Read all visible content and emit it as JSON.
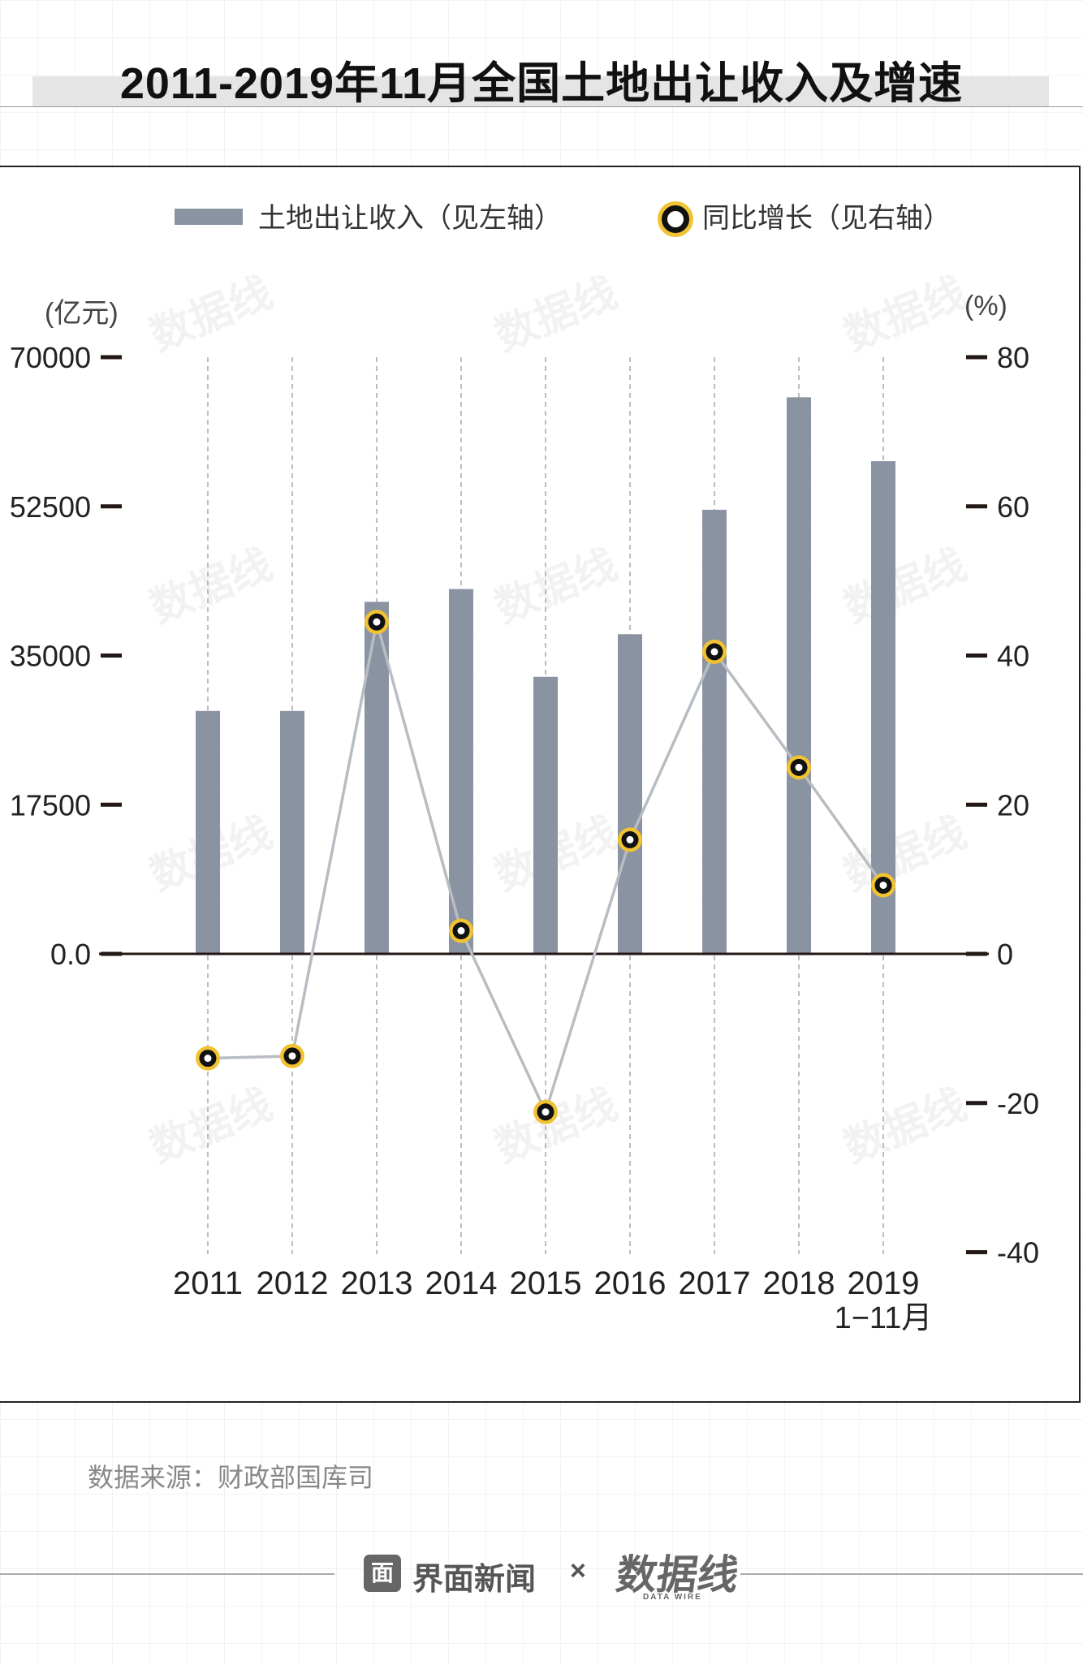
{
  "title": "2011-2019年11月全国土地出让收入及增速",
  "legend": {
    "bar_label": "土地出让收入（见左轴）",
    "line_label": "同比增长（见右轴）"
  },
  "left_unit": "(亿元)",
  "right_unit": "(%)",
  "source": "数据来源：财政部国库司",
  "footer": {
    "logo_glyph": "面",
    "brand": "界面新闻",
    "times": "×",
    "datawire_cn": "数据线",
    "datawire_en": "DATA WIRE"
  },
  "watermark_text": "数据线",
  "colors": {
    "bar": "#8a93a1",
    "line": "#b8bcc3",
    "marker_ring": "#f1c232",
    "marker_core": "#111111",
    "axis_tick": "#231815"
  },
  "chart_data": {
    "type": "bar",
    "title": "2011-2019年11月全国土地出让收入及增速",
    "categories": [
      "2011",
      "2012",
      "2013",
      "2014",
      "2015",
      "2016",
      "2017",
      "2018",
      "2019"
    ],
    "category_sublabels": [
      "",
      "",
      "",
      "",
      "",
      "",
      "",
      "",
      "1−11月"
    ],
    "series": [
      {
        "name": "土地出让收入（见左轴）",
        "type": "bar",
        "axis": "left",
        "values": [
          28500,
          28500,
          41300,
          42800,
          32500,
          37500,
          52100,
          65300,
          57800
        ]
      },
      {
        "name": "同比增长（见右轴）",
        "type": "line",
        "axis": "right",
        "values": [
          -14,
          -13.7,
          44.5,
          3.1,
          -21.2,
          15.3,
          40.5,
          25,
          9.2
        ]
      }
    ],
    "left_axis": {
      "label": "(亿元)",
      "ticks": [
        70000,
        52500,
        35000,
        17500,
        0
      ],
      "tick_labels": [
        "70000",
        "52500",
        "35000",
        "17500",
        "0.0"
      ],
      "range": [
        0,
        70000
      ]
    },
    "right_axis": {
      "label": "(%)",
      "ticks": [
        80,
        60,
        40,
        20,
        0,
        -20,
        -40
      ],
      "tick_labels": [
        "80",
        "60",
        "40",
        "20",
        "0",
        "-20",
        "-40"
      ],
      "range": [
        -40,
        80
      ]
    },
    "grid": "vertical dashed lines at each category",
    "legend_position": "top"
  }
}
